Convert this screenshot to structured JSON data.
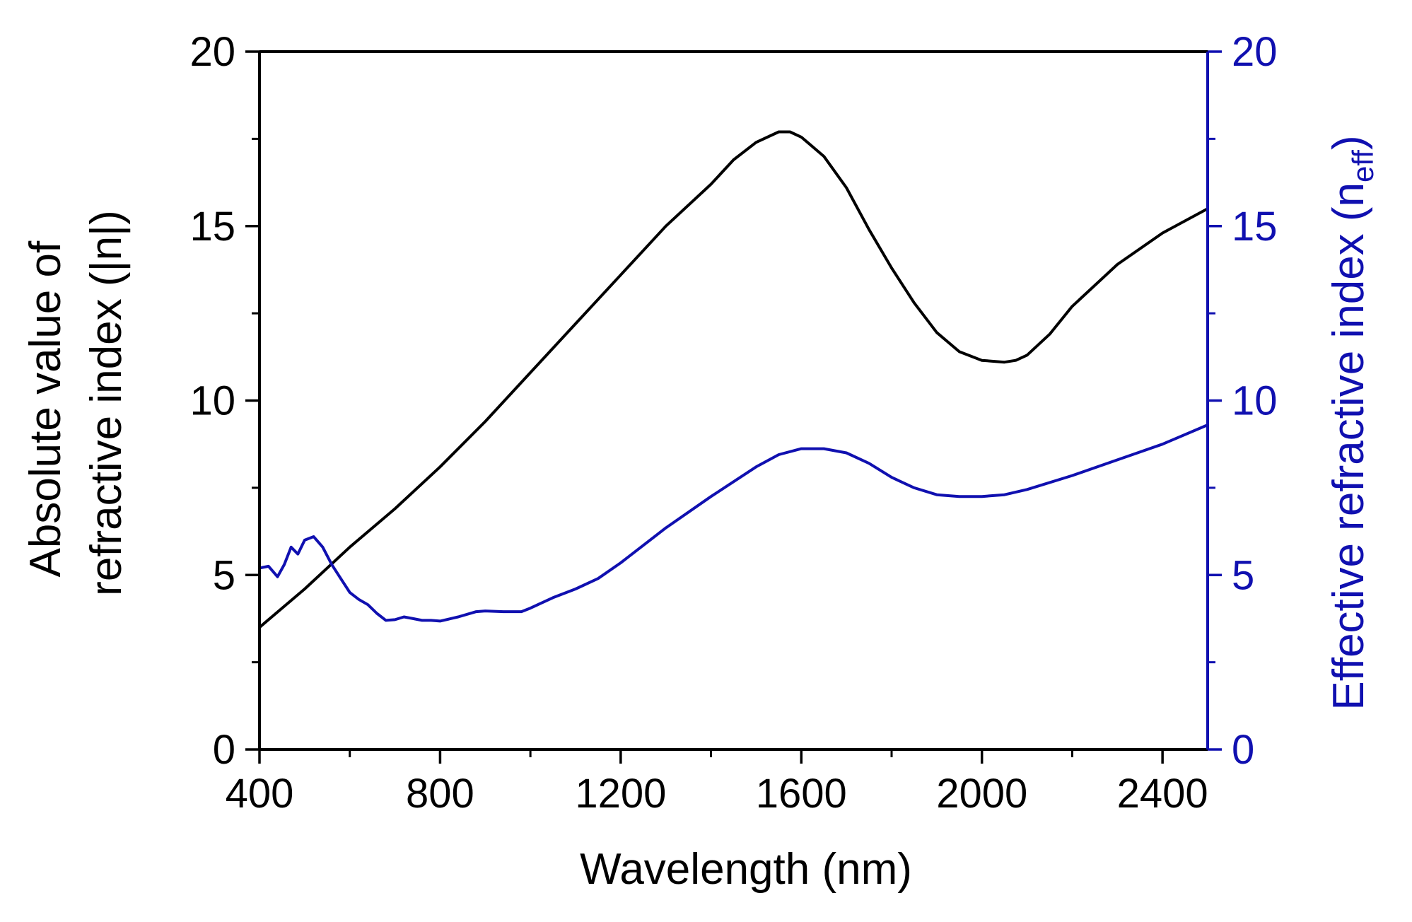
{
  "chart_data": {
    "type": "line",
    "title": "",
    "xlabel": "Wavelength  (nm)",
    "ylabel_left": [
      "Absolute value of",
      "refractive index (|n|)"
    ],
    "ylabel_right": {
      "text": "Effective refractive index (n",
      "sub": "eff",
      "close": ")"
    },
    "xlim": [
      400,
      2500
    ],
    "ylim_left": [
      0,
      20
    ],
    "ylim_right": [
      0,
      20
    ],
    "x_ticks": [
      400,
      800,
      1200,
      1600,
      2000,
      2400
    ],
    "x_tick_labels": [
      "400",
      "800",
      "1200",
      "1600",
      "2000",
      "2400"
    ],
    "y_ticks_left": [
      0,
      5,
      10,
      15,
      20
    ],
    "y_tick_labels_left": [
      "0",
      "5",
      "10",
      "15",
      "20"
    ],
    "y_ticks_right": [
      0,
      5,
      10,
      15,
      20
    ],
    "y_tick_labels_right": [
      "0",
      "5",
      "10",
      "15",
      "20"
    ],
    "grid": false,
    "series": [
      {
        "name": "Absolute value of refractive index (|n|)",
        "axis": "left",
        "color": "#000000",
        "x": [
          400,
          500,
          600,
          700,
          800,
          900,
          1000,
          1100,
          1200,
          1300,
          1400,
          1450,
          1500,
          1550,
          1575,
          1600,
          1650,
          1700,
          1750,
          1800,
          1850,
          1900,
          1950,
          2000,
          2050,
          2075,
          2100,
          2150,
          2200,
          2300,
          2400,
          2500
        ],
        "y": [
          3.5,
          4.6,
          5.8,
          6.9,
          8.1,
          9.4,
          10.8,
          12.2,
          13.6,
          15.0,
          16.2,
          16.9,
          17.4,
          17.7,
          17.7,
          17.55,
          17.0,
          16.1,
          14.9,
          13.8,
          12.8,
          11.95,
          11.4,
          11.15,
          11.1,
          11.15,
          11.3,
          11.9,
          12.7,
          13.9,
          14.8,
          15.5
        ]
      },
      {
        "name": "Effective refractive index (neff)",
        "axis": "right",
        "color": "#1010b0",
        "x": [
          400,
          420,
          440,
          455,
          470,
          485,
          500,
          520,
          540,
          560,
          580,
          600,
          620,
          640,
          660,
          680,
          700,
          720,
          740,
          760,
          780,
          800,
          840,
          880,
          900,
          940,
          980,
          1000,
          1050,
          1100,
          1150,
          1200,
          1300,
          1400,
          1500,
          1550,
          1600,
          1650,
          1700,
          1750,
          1800,
          1850,
          1900,
          1950,
          2000,
          2050,
          2100,
          2200,
          2300,
          2400,
          2500
        ],
        "y": [
          5.2,
          5.25,
          4.95,
          5.3,
          5.8,
          5.6,
          6.0,
          6.1,
          5.8,
          5.3,
          4.9,
          4.5,
          4.3,
          4.15,
          3.9,
          3.7,
          3.72,
          3.8,
          3.75,
          3.7,
          3.7,
          3.68,
          3.8,
          3.95,
          3.97,
          3.95,
          3.95,
          4.05,
          4.35,
          4.6,
          4.9,
          5.35,
          6.35,
          7.25,
          8.1,
          8.45,
          8.62,
          8.62,
          8.5,
          8.2,
          7.8,
          7.5,
          7.3,
          7.25,
          7.25,
          7.3,
          7.45,
          7.85,
          8.3,
          8.75,
          9.3
        ]
      }
    ]
  }
}
